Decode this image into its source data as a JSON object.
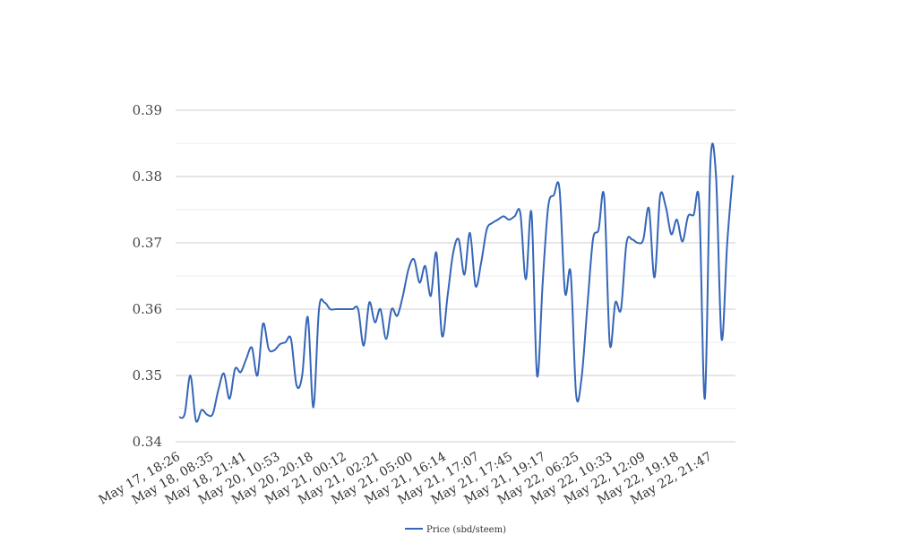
{
  "chart_data": {
    "type": "line",
    "title": "",
    "xlabel": "",
    "ylabel": "",
    "ylim": [
      0.34,
      0.39
    ],
    "y_ticks": [
      "0.34",
      "0.35",
      "0.36",
      "0.37",
      "0.38",
      "0.39"
    ],
    "y_minor_ticks": [
      0.345,
      0.355,
      0.365,
      0.375,
      0.385
    ],
    "x_tick_labels": [
      "May 17, 18:26",
      "May 18, 08:35",
      "May 18, 21:41",
      "May 20, 10:53",
      "May 20, 20:18",
      "May 21, 00:12",
      "May 21, 02:21",
      "May 21, 05:00",
      "May 21, 16:14",
      "May 21, 17:07",
      "May 21, 17:45",
      "May 21, 19:17",
      "May 22, 06:25",
      "May 22, 10:33",
      "May 22, 12:09",
      "May 22, 19:18",
      "May 22, 21:47"
    ],
    "grid": true,
    "legend_position": "bottom-center",
    "line_color": "#3566b8",
    "series": [
      {
        "name": "Price (sbd/steem)",
        "values": [
          0.3437,
          0.3442,
          0.35,
          0.3432,
          0.3448,
          0.3441,
          0.3442,
          0.3478,
          0.3503,
          0.3465,
          0.351,
          0.3505,
          0.3525,
          0.3542,
          0.35,
          0.3578,
          0.354,
          0.3538,
          0.3547,
          0.355,
          0.3555,
          0.3485,
          0.35,
          0.3588,
          0.3452,
          0.36,
          0.361,
          0.36,
          0.36,
          0.36,
          0.36,
          0.36,
          0.36,
          0.3545,
          0.361,
          0.358,
          0.36,
          0.3555,
          0.36,
          0.359,
          0.362,
          0.366,
          0.3675,
          0.364,
          0.3665,
          0.362,
          0.3685,
          0.356,
          0.362,
          0.3685,
          0.3705,
          0.3652,
          0.3715,
          0.3635,
          0.367,
          0.372,
          0.373,
          0.3735,
          0.374,
          0.3735,
          0.374,
          0.3745,
          0.3645,
          0.3745,
          0.35,
          0.364,
          0.3755,
          0.3772,
          0.3782,
          0.3625,
          0.3655,
          0.347,
          0.35,
          0.3605,
          0.3705,
          0.372,
          0.377,
          0.3548,
          0.361,
          0.36,
          0.37,
          0.3705,
          0.37,
          0.3705,
          0.3752,
          0.3648,
          0.377,
          0.3755,
          0.3713,
          0.3735,
          0.3702,
          0.374,
          0.3742,
          0.376,
          0.3465,
          0.382,
          0.38,
          0.3555,
          0.37,
          0.3802
        ]
      }
    ]
  }
}
